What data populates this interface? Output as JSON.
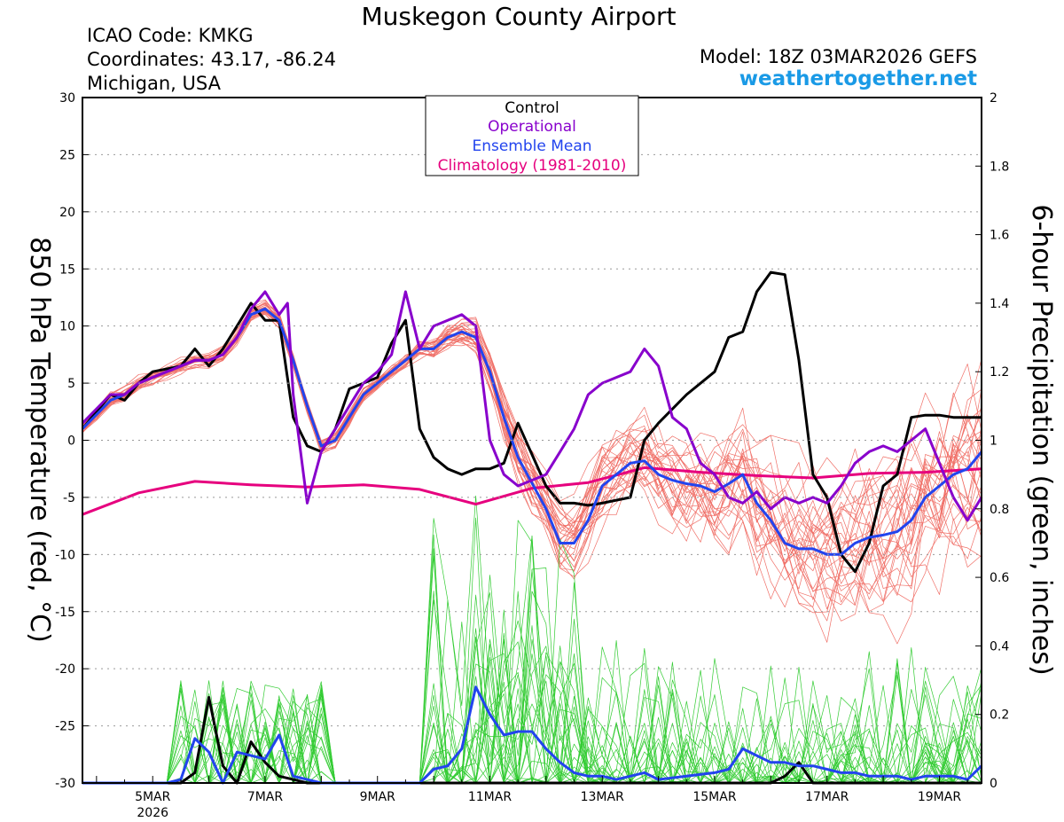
{
  "header": {
    "title": "Muskegon County Airport",
    "icao": "ICAO Code: KMKG",
    "coordinates": "Coordinates: 43.17, -86.24",
    "region": "Michigan, USA",
    "model": "Model: 18Z 03MAR2026 GEFS",
    "website": "weathertogether.net"
  },
  "colors": {
    "control": "#000000",
    "operational": "#8800cc",
    "ensemble_mean": "#2244ee",
    "climatology": "#e6007e",
    "temp_members": "#f07068",
    "precip_members": "#33cc33",
    "website": "#1a9ae6"
  },
  "chart_data": {
    "type": "line",
    "ylabel_left": "850 hPa Temperature (red, °C)",
    "ylabel_right": "6-hour Precipitation (green, inches)",
    "ylim_left": [
      -30,
      30
    ],
    "ylim_right": [
      0,
      2
    ],
    "yticks_left": [
      "30",
      "25",
      "20",
      "15",
      "10",
      "5",
      "0",
      "-5",
      "-10",
      "-15",
      "-20",
      "-25",
      "-30"
    ],
    "yticks_right": [
      "2",
      "1.8",
      "1.6",
      "1.4",
      "1.2",
      "1",
      "0.8",
      "0.6",
      "0.4",
      "0.2",
      "0"
    ],
    "xlim_days": [
      3.75,
      19.75
    ],
    "xticks": [
      {
        "day": 5,
        "label": "5MAR",
        "sub": "2026"
      },
      {
        "day": 7,
        "label": "7MAR",
        "sub": ""
      },
      {
        "day": 9,
        "label": "9MAR",
        "sub": ""
      },
      {
        "day": 11,
        "label": "11MAR",
        "sub": ""
      },
      {
        "day": 13,
        "label": "13MAR",
        "sub": ""
      },
      {
        "day": 15,
        "label": "15MAR",
        "sub": ""
      },
      {
        "day": 17,
        "label": "17MAR",
        "sub": ""
      },
      {
        "day": 19,
        "label": "19MAR",
        "sub": ""
      }
    ],
    "grid": "dotted horizontal",
    "legend": {
      "position": "top-center",
      "entries": [
        "Control",
        "Operational",
        "Ensemble Mean",
        "Climatology (1981-2010)"
      ]
    },
    "temperature_series": [
      {
        "name": "Control",
        "x": [
          3.75,
          4.25,
          4.5,
          4.75,
          5,
          5.5,
          5.75,
          6,
          6.25,
          6.5,
          6.75,
          7,
          7.25,
          7.5,
          7.75,
          8,
          8.25,
          8.5,
          8.75,
          9,
          9.25,
          9.5,
          9.75,
          10,
          10.25,
          10.5,
          10.75,
          11,
          11.25,
          11.5,
          12,
          12.25,
          12.5,
          12.75,
          13,
          13.5,
          13.75,
          14,
          14.5,
          15,
          15.25,
          15.5,
          15.75,
          16,
          16.25,
          16.5,
          16.75,
          17,
          17.25,
          17.5,
          17.75,
          18,
          18.25,
          18.5,
          18.75,
          19,
          19.25,
          19.5,
          19.75
        ],
        "y": [
          1,
          4,
          3.5,
          5,
          6,
          6.5,
          8,
          6.5,
          8,
          10,
          12,
          10.5,
          10.5,
          2,
          -0.5,
          -1,
          1,
          4.5,
          5,
          5.5,
          8.5,
          10.5,
          1,
          -1.5,
          -2.5,
          -3,
          -2.5,
          -2.5,
          -2,
          1.5,
          -4,
          -5.5,
          -5.5,
          -5.7,
          -5.5,
          -5,
          0,
          1.5,
          4,
          6,
          9,
          9.5,
          13,
          14.7,
          14.5,
          7,
          -3,
          -5,
          -10,
          -11.5,
          -9,
          -4,
          -3,
          2,
          2.2,
          2.2,
          2,
          2,
          2
        ]
      },
      {
        "name": "Operational",
        "x": [
          3.75,
          4.25,
          4.5,
          4.75,
          5,
          5.5,
          5.75,
          6,
          6.25,
          6.5,
          6.75,
          7,
          7.25,
          7.4,
          7.5,
          7.75,
          8,
          8.25,
          8.5,
          8.75,
          9,
          9.25,
          9.5,
          9.75,
          10,
          10.25,
          10.5,
          10.75,
          11,
          11.25,
          11.5,
          12,
          12.25,
          12.5,
          12.75,
          13,
          13.25,
          13.5,
          13.75,
          14,
          14.25,
          14.5,
          14.75,
          15,
          15.25,
          15.5,
          15.75,
          16,
          16.25,
          16.5,
          16.75,
          17,
          17.25,
          17.5,
          17.75,
          18,
          18.25,
          18.5,
          18.75,
          19,
          19.25,
          19.5,
          19.75
        ],
        "y": [
          1.5,
          4,
          4,
          5,
          5.5,
          6.5,
          7,
          7,
          7.5,
          9,
          11.5,
          13,
          11,
          12,
          4,
          -5.5,
          -1,
          1,
          3,
          5,
          6,
          7.5,
          13,
          8,
          10,
          10.5,
          11,
          10,
          0,
          -3,
          -4,
          -3,
          -1,
          1,
          4,
          5,
          5.5,
          6,
          8,
          6.5,
          2,
          1,
          -2,
          -3,
          -5,
          -5.5,
          -4.5,
          -6,
          -5,
          -5.5,
          -5,
          -5.5,
          -4,
          -2,
          -1,
          -0.5,
          -1,
          0,
          1,
          -2,
          -5,
          -7,
          -5
        ]
      },
      {
        "name": "Ensemble Mean",
        "x": [
          3.75,
          4.25,
          4.5,
          4.75,
          5,
          5.5,
          5.75,
          6,
          6.25,
          6.5,
          6.75,
          7,
          7.25,
          7.5,
          7.75,
          8,
          8.25,
          8.5,
          8.75,
          9,
          9.25,
          9.5,
          9.75,
          10,
          10.25,
          10.5,
          10.75,
          11,
          11.25,
          11.5,
          12,
          12.25,
          12.5,
          12.75,
          13,
          13.5,
          13.75,
          14,
          14.25,
          14.5,
          14.75,
          15,
          15.25,
          15.5,
          15.75,
          16,
          16.25,
          16.5,
          16.75,
          17,
          17.25,
          17.5,
          17.75,
          18,
          18.25,
          18.5,
          18.75,
          19,
          19.25,
          19.5,
          19.75
        ],
        "y": [
          1,
          3.5,
          4,
          5,
          5.5,
          6.5,
          7,
          7,
          7.5,
          9,
          11,
          11.5,
          10.5,
          7,
          3,
          -0.5,
          0,
          2,
          4,
          5,
          6,
          7,
          8,
          8,
          9,
          9.5,
          9,
          6,
          2,
          -1.5,
          -6,
          -9,
          -9,
          -7,
          -4,
          -2,
          -1.8,
          -3,
          -3.5,
          -3.8,
          -4,
          -4.5,
          -3.8,
          -3,
          -5.5,
          -7,
          -9,
          -9.5,
          -9.5,
          -10,
          -10,
          -9,
          -8.5,
          -8.3,
          -8,
          -7,
          -5,
          -4,
          -3,
          -2.5,
          -1
        ]
      },
      {
        "name": "Climatology (1981-2010)",
        "x": [
          3.75,
          4.75,
          5.75,
          6.75,
          7.75,
          8.75,
          9.75,
          10.75,
          11.75,
          12.75,
          13.75,
          14.75,
          15.75,
          16.75,
          17.75,
          18.75,
          19.75
        ],
        "y": [
          -6.5,
          -4.6,
          -3.6,
          -3.9,
          -4.1,
          -3.9,
          -4.3,
          -5.6,
          -4.2,
          -3.7,
          -2.4,
          -2.8,
          -3.1,
          -3.3,
          -2.9,
          -2.8,
          -2.5
        ]
      }
    ],
    "precip_series": [
      {
        "name": "Control",
        "x": [
          3.75,
          5.25,
          5.5,
          5.75,
          6,
          6.25,
          6.5,
          6.75,
          7,
          7.25,
          7.5,
          7.75,
          8,
          8.25,
          8.5,
          9,
          10,
          11,
          12,
          12.75,
          13,
          14,
          15,
          16,
          16.25,
          16.5,
          16.75,
          17,
          19.75
        ],
        "y": [
          0,
          0,
          0,
          0.03,
          0.25,
          0.05,
          0,
          0.12,
          0.06,
          0.02,
          0.01,
          0,
          0,
          0,
          0,
          0,
          0,
          0,
          0,
          0,
          0,
          0,
          0,
          0,
          0.02,
          0.06,
          0,
          0,
          0
        ]
      },
      {
        "name": "Ensemble Mean",
        "x": [
          3.75,
          5.25,
          5.5,
          5.75,
          6,
          6.25,
          6.5,
          6.75,
          7,
          7.25,
          7.5,
          7.75,
          8,
          8.25,
          8.5,
          9,
          9.5,
          9.75,
          10,
          10.25,
          10.5,
          10.75,
          11,
          11.25,
          11.5,
          11.75,
          12,
          12.25,
          12.5,
          12.75,
          13,
          13.25,
          13.5,
          13.75,
          14,
          14.5,
          15,
          15.25,
          15.5,
          15.75,
          16,
          16.25,
          16.5,
          16.75,
          17,
          17.25,
          17.5,
          17.75,
          18,
          18.25,
          18.5,
          18.75,
          19,
          19.25,
          19.5,
          19.75
        ],
        "y": [
          0,
          0,
          0.01,
          0.13,
          0.09,
          0,
          0.09,
          0.08,
          0.07,
          0.14,
          0.02,
          0.01,
          0,
          0,
          0,
          0,
          0,
          0,
          0.04,
          0.05,
          0.1,
          0.28,
          0.2,
          0.14,
          0.15,
          0.15,
          0.1,
          0.06,
          0.03,
          0.02,
          0.02,
          0.01,
          0.02,
          0.03,
          0.01,
          0.02,
          0.03,
          0.04,
          0.1,
          0.08,
          0.06,
          0.06,
          0.05,
          0.05,
          0.04,
          0.03,
          0.03,
          0.02,
          0.02,
          0.02,
          0.01,
          0.02,
          0.02,
          0.02,
          0.01,
          0.05
        ]
      }
    ]
  }
}
